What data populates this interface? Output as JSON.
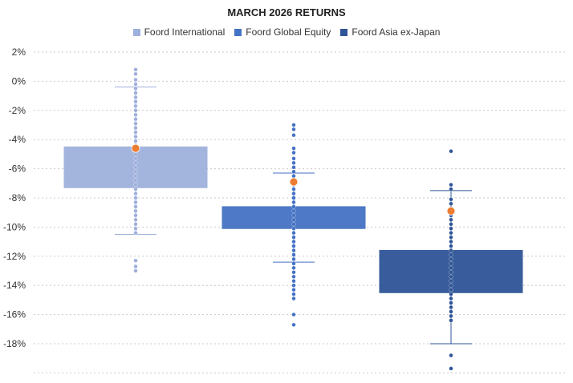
{
  "chart_data": {
    "type": "box",
    "title": "MARCH 2026 RETURNS",
    "xlabel": "",
    "ylabel": "",
    "ylim": [
      -20,
      2
    ],
    "yticks": [
      2,
      0,
      -2,
      -4,
      -6,
      -8,
      -10,
      -12,
      -14,
      -16,
      -18
    ],
    "ytick_labels": [
      "2%",
      "0%",
      "-2%",
      "-4%",
      "-6%",
      "-8%",
      "-10%",
      "-12%",
      "-14%",
      "-16%",
      "-18%"
    ],
    "grid": true,
    "legend": "top",
    "series": [
      {
        "name": "Foord International",
        "color": "#9fb0dc",
        "q1": -7.3,
        "q3": -4.5,
        "whisker_low": -10.5,
        "whisker_high": -0.4,
        "marker": -4.6,
        "points": [
          0.8,
          0.5,
          0.1,
          -0.2,
          -0.5,
          -0.8,
          -1.1,
          -1.4,
          -1.7,
          -2.0,
          -2.3,
          -2.6,
          -2.9,
          -3.2,
          -3.5,
          -3.8,
          -4.1,
          -4.4,
          -4.7,
          -5.0,
          -5.3,
          -5.6,
          -5.9,
          -6.2,
          -6.5,
          -6.8,
          -7.1,
          -7.4,
          -7.7,
          -8.0,
          -8.3,
          -8.6,
          -8.9,
          -9.2,
          -9.5,
          -9.8,
          -10.1,
          -10.4,
          -12.3,
          -12.7,
          -13.0
        ]
      },
      {
        "name": "Foord Global Equity",
        "color": "#4472c4",
        "q1": -10.1,
        "q3": -8.6,
        "whisker_low": -12.4,
        "whisker_high": -6.3,
        "marker": -6.9,
        "points": [
          -3.0,
          -3.3,
          -3.7,
          -4.6,
          -4.9,
          -5.3,
          -5.6,
          -5.9,
          -6.2,
          -6.5,
          -6.8,
          -7.1,
          -7.4,
          -7.7,
          -8.0,
          -8.3,
          -8.6,
          -8.9,
          -9.2,
          -9.5,
          -9.8,
          -10.1,
          -10.4,
          -10.7,
          -11.0,
          -11.3,
          -11.6,
          -11.9,
          -12.2,
          -12.5,
          -12.8,
          -13.1,
          -13.4,
          -13.7,
          -14.0,
          -14.3,
          -14.6,
          -14.9,
          -16.0,
          -16.7
        ]
      },
      {
        "name": "Foord Asia ex-Japan",
        "color": "#2f5597",
        "q1": -14.5,
        "q3": -11.6,
        "whisker_low": -18.0,
        "whisker_high": -7.5,
        "marker": -8.9,
        "points": [
          -4.8,
          -7.1,
          -7.4,
          -8.1,
          -8.4,
          -8.7,
          -9.2,
          -9.5,
          -9.8,
          -10.1,
          -10.4,
          -10.7,
          -11.0,
          -11.3,
          -11.6,
          -11.9,
          -12.2,
          -12.5,
          -12.8,
          -13.1,
          -13.4,
          -13.7,
          -14.0,
          -14.3,
          -14.6,
          -14.9,
          -15.2,
          -15.5,
          -15.8,
          -16.1,
          -16.4,
          -18.8,
          -19.7
        ]
      }
    ],
    "marker_color": "#ed7d31"
  }
}
